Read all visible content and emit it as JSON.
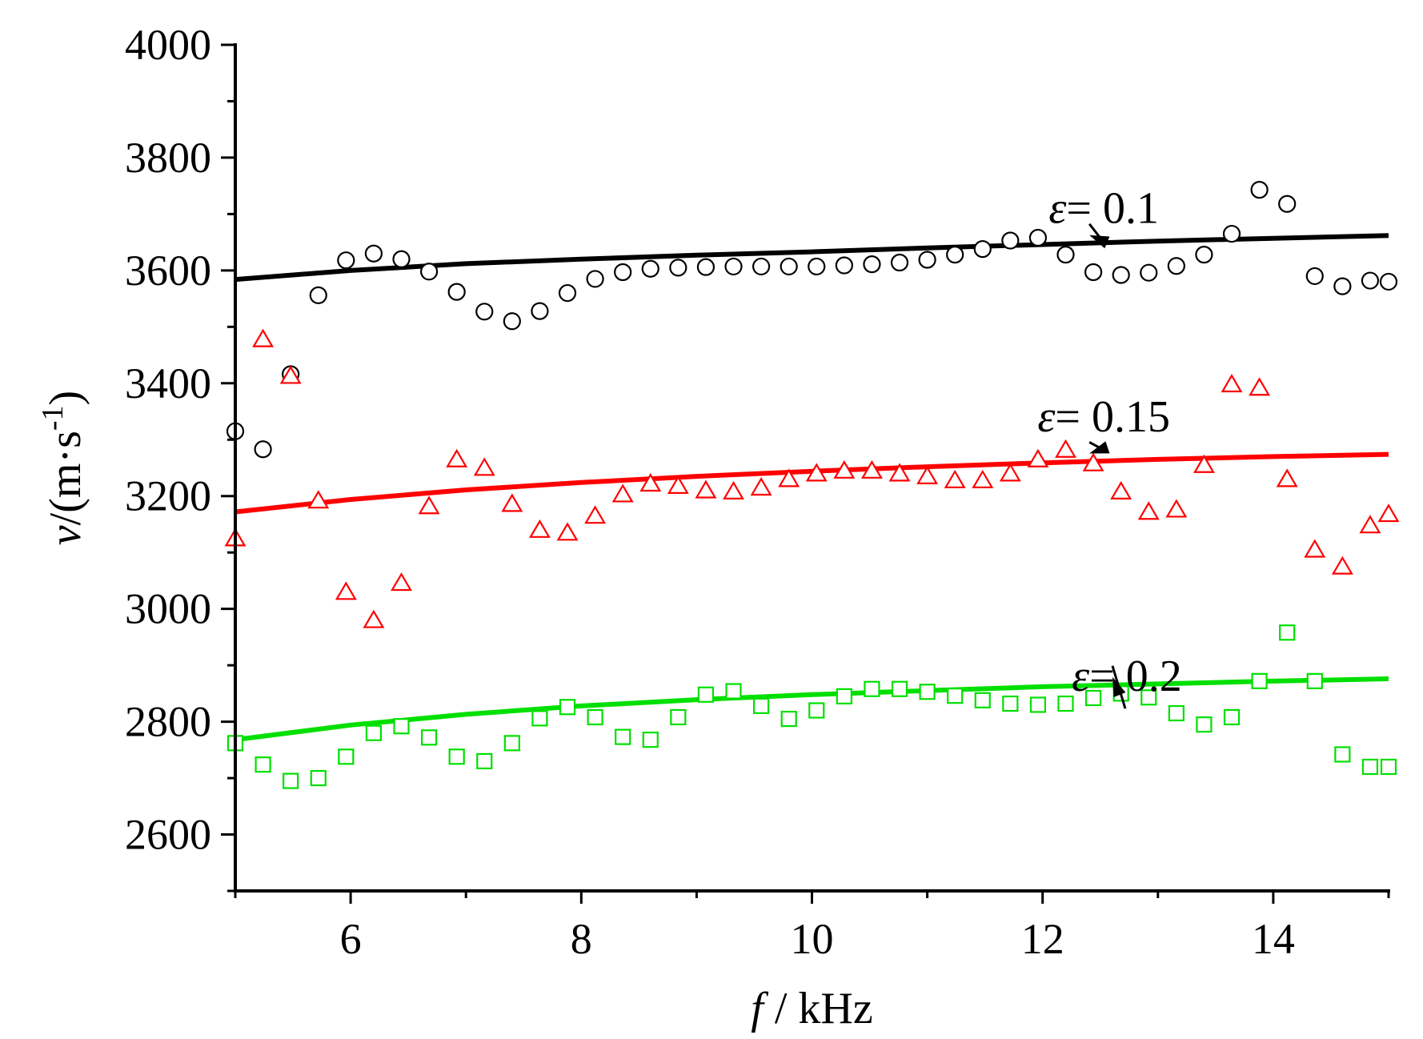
{
  "chart_data": {
    "type": "scatter",
    "xlabel": "f / kHz",
    "ylabel": "v/(m·s-1)",
    "xlim": [
      5,
      15
    ],
    "ylim": [
      2500,
      4000
    ],
    "xticks": [
      6,
      8,
      10,
      12,
      14
    ],
    "yticks": [
      2600,
      2800,
      3000,
      3200,
      3400,
      3600,
      3800,
      4000
    ],
    "xtick_labels": [
      "6",
      "8",
      "10",
      "12",
      "14"
    ],
    "ytick_labels": [
      "2600",
      "2800",
      "3000",
      "3200",
      "3400",
      "3600",
      "3800",
      "4000"
    ],
    "grid": false,
    "annotations": [
      {
        "symbol": "ε",
        "text": "= 0.1",
        "x": 12.6,
        "y": 3710
      },
      {
        "symbol": "ε",
        "text": "= 0.15",
        "x": 12.6,
        "y": 3340
      },
      {
        "symbol": "ε",
        "text": "= 0.2",
        "x": 12.8,
        "y": 2880
      }
    ],
    "x": [
      5.0,
      5.24,
      5.48,
      5.72,
      5.96,
      6.2,
      6.44,
      6.68,
      6.92,
      7.16,
      7.4,
      7.64,
      7.88,
      8.12,
      8.36,
      8.6,
      8.84,
      9.08,
      9.32,
      9.56,
      9.8,
      10.04,
      10.28,
      10.52,
      10.76,
      11.0,
      11.24,
      11.48,
      11.72,
      11.96,
      12.2,
      12.44,
      12.68,
      12.92,
      13.16,
      13.4,
      13.64,
      13.88,
      14.12,
      14.36,
      14.6,
      14.84,
      15.0
    ],
    "series": [
      {
        "name": "ε = 0.1",
        "color": "#000000",
        "marker": "circle",
        "values": [
          3315,
          3283,
          3416,
          3556,
          3618,
          3630,
          3620,
          3598,
          3562,
          3527,
          3510,
          3528,
          3560,
          3585,
          3597,
          3603,
          3605,
          3606,
          3607,
          3607,
          3607,
          3607,
          3609,
          3611,
          3614,
          3619,
          3628,
          3638,
          3653,
          3658,
          3628,
          3597,
          3592,
          3596,
          3608,
          3628,
          3665,
          3743,
          3718,
          3590,
          3572,
          3582,
          3580
        ],
        "fit": {
          "x": [
            5,
            6,
            7,
            8,
            9,
            10,
            11,
            12,
            13,
            14,
            15
          ],
          "y": [
            3584,
            3600,
            3612,
            3620,
            3627,
            3633,
            3640,
            3646,
            3652,
            3657,
            3662
          ]
        }
      },
      {
        "name": "ε = 0.15",
        "color": "#ff0000",
        "marker": "triangle",
        "values": [
          3125,
          3478,
          3413,
          3192,
          3030,
          2980,
          3046,
          3182,
          3265,
          3250,
          3186,
          3140,
          3135,
          3165,
          3203,
          3222,
          3218,
          3210,
          3208,
          3215,
          3230,
          3240,
          3245,
          3245,
          3240,
          3235,
          3228,
          3228,
          3240,
          3265,
          3282,
          3258,
          3208,
          3172,
          3176,
          3255,
          3398,
          3392,
          3230,
          3105,
          3075,
          3148,
          3168
        ],
        "fit": {
          "x": [
            5,
            6,
            7,
            8,
            9,
            10,
            11,
            12,
            13,
            14,
            15
          ],
          "y": [
            3172,
            3194,
            3211,
            3224,
            3235,
            3244,
            3252,
            3259,
            3265,
            3270,
            3274
          ]
        }
      },
      {
        "name": "ε = 0.2",
        "color": "#00e000",
        "marker": "square",
        "values": [
          2762,
          2724,
          2695,
          2700,
          2738,
          2780,
          2792,
          2772,
          2738,
          2730,
          2762,
          2806,
          2826,
          2808,
          2773,
          2768,
          2808,
          2848,
          2854,
          2828,
          2805,
          2820,
          2845,
          2858,
          2858,
          2853,
          2846,
          2838,
          2832,
          2830,
          2832,
          2842,
          2850,
          2843,
          2815,
          2795,
          2808,
          2872,
          2958,
          2872,
          2742,
          2720,
          2720
        ],
        "fit": {
          "x": [
            5,
            6,
            7,
            8,
            9,
            10,
            11,
            12,
            13,
            14,
            15
          ],
          "y": [
            2768,
            2794,
            2813,
            2828,
            2839,
            2848,
            2855,
            2862,
            2867,
            2872,
            2876
          ]
        }
      }
    ]
  }
}
